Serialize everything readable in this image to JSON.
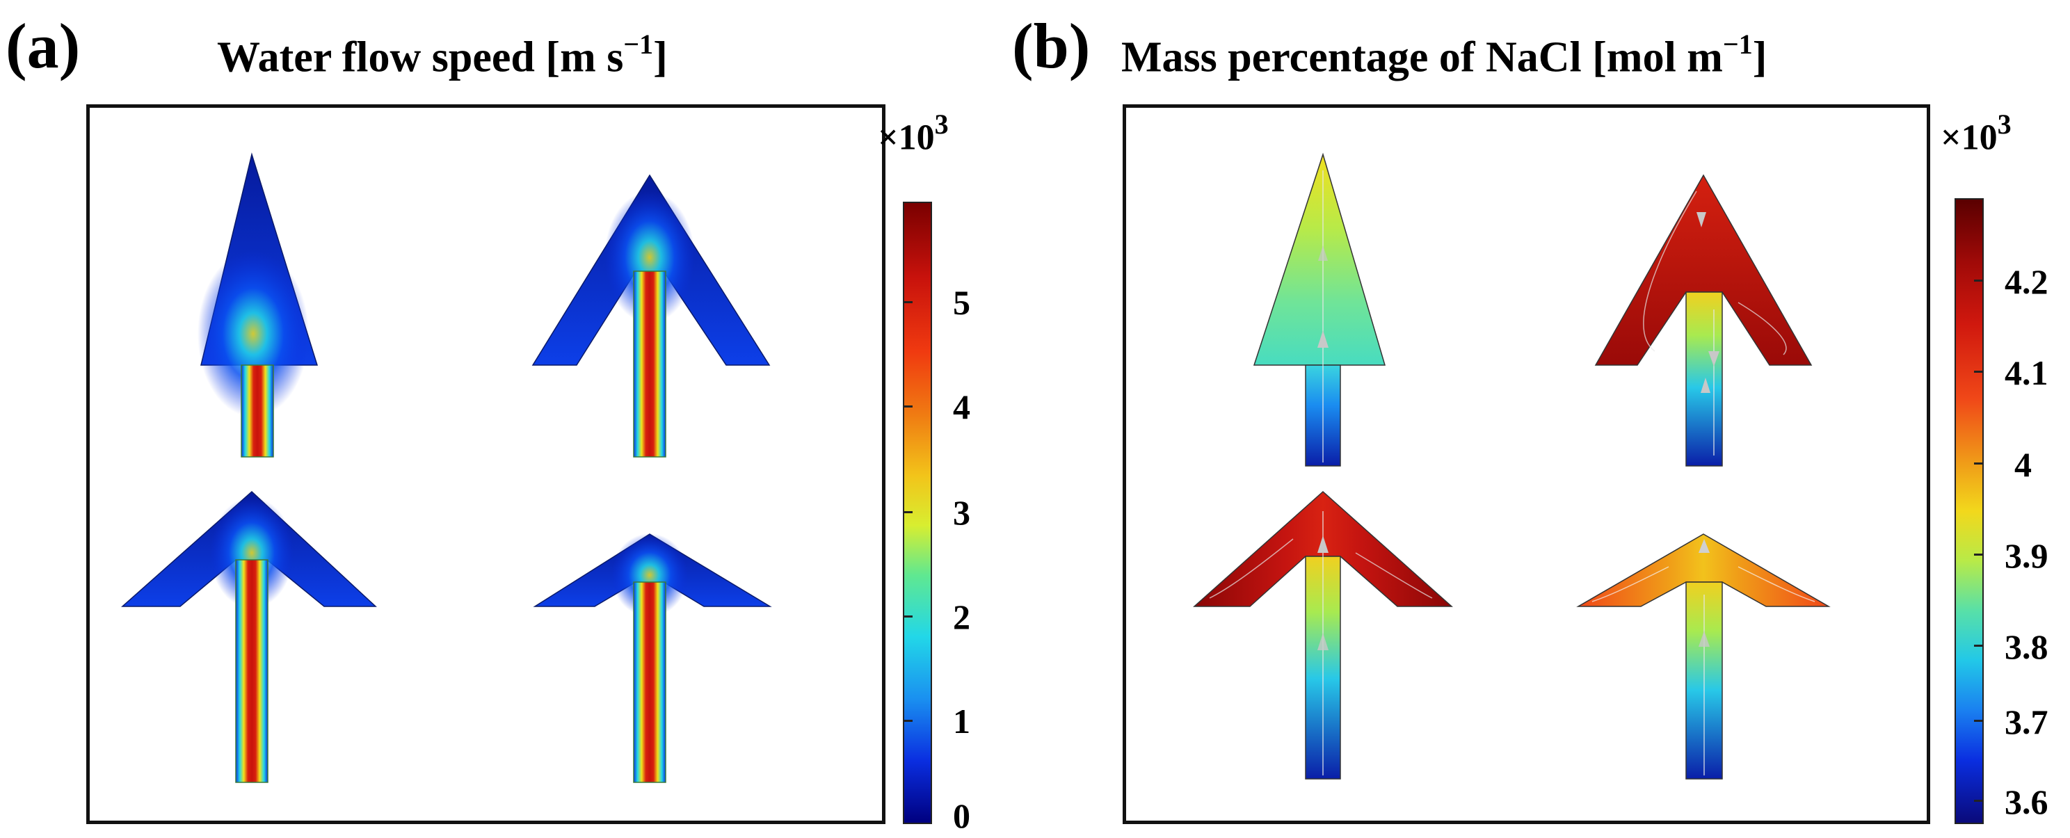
{
  "panel_a": {
    "letter": "(a)",
    "title_prefix": "Water flow speed [m s",
    "title_sup": "−1",
    "title_suffix": "]",
    "multiplier_base": "×10",
    "multiplier_exp": "3",
    "colorbar_ticks": [
      "5",
      "4",
      "3",
      "2",
      "1",
      "0"
    ]
  },
  "panel_b": {
    "letter": "(b)",
    "title_prefix": "Mass percentage of NaCl [mol m",
    "title_sup": "−1",
    "title_suffix": "]",
    "multiplier_base": "×10",
    "multiplier_exp": "3",
    "colorbar_ticks": [
      "4.2",
      "4.1",
      "4",
      "3.9",
      "3.8",
      "3.7",
      "3.6"
    ]
  },
  "colors": {
    "jet_dark_blue": "#00007f",
    "jet_blue": "#0a2ee0",
    "jet_cyan": "#22d7e8",
    "jet_yellow": "#f2e21a",
    "jet_orange": "#f07a12",
    "jet_red": "#c8120c",
    "jet_dark_red": "#6a0000"
  }
}
